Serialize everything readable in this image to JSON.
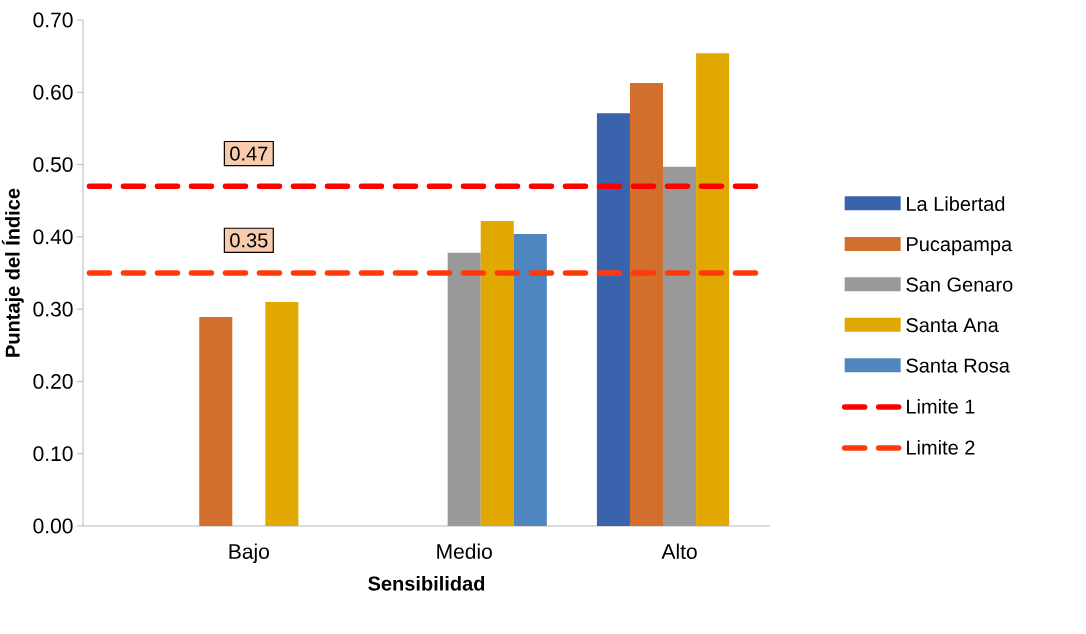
{
  "chart_data": {
    "type": "bar",
    "xlabel": "Sensibilidad",
    "ylabel": "Puntaje del Índice",
    "categories": [
      "Bajo",
      "Medio",
      "Alto"
    ],
    "series": [
      {
        "name": "La Libertad",
        "color": "#3a63ad",
        "values": [
          null,
          null,
          0.571
        ]
      },
      {
        "name": "Pucapampa",
        "color": "#d26f2c",
        "values": [
          0.289,
          null,
          0.613
        ]
      },
      {
        "name": "San Genaro",
        "color": "#999999",
        "values": [
          null,
          0.378,
          0.497
        ]
      },
      {
        "name": "Santa Ana",
        "color": "#e0a800",
        "values": [
          0.31,
          0.422,
          0.654
        ]
      },
      {
        "name": "Santa Rosa",
        "color": "#4f86bf",
        "values": [
          null,
          0.404,
          null
        ]
      }
    ],
    "ref_lines": [
      {
        "axis": "y",
        "value": 0.47,
        "label": "Limite 1",
        "color": "#ff0000",
        "line_style": "dashed"
      },
      {
        "axis": "y",
        "value": 0.35,
        "label": "Limite 2",
        "color": "#ff3a0a",
        "line_style": "dashed"
      }
    ],
    "annotations": [
      {
        "text": "0.47",
        "x": "Bajo",
        "y": 0.47
      },
      {
        "text": "0.35",
        "x": "Bajo",
        "y": 0.35
      }
    ],
    "ylim": [
      0,
      0.7
    ],
    "yticks": [
      {
        "value": 0,
        "label": "0.00"
      },
      {
        "value": 0.1,
        "label": "0.10"
      },
      {
        "value": 0.2,
        "label": "0.20"
      },
      {
        "value": 0.3,
        "label": "0.30"
      },
      {
        "value": 0.4,
        "label": "0.40"
      },
      {
        "value": 0.5,
        "label": "0.50"
      },
      {
        "value": 0.6,
        "label": "0.60"
      },
      {
        "value": 0.7,
        "label": "0.70"
      }
    ],
    "grid": false,
    "legend": "right"
  }
}
